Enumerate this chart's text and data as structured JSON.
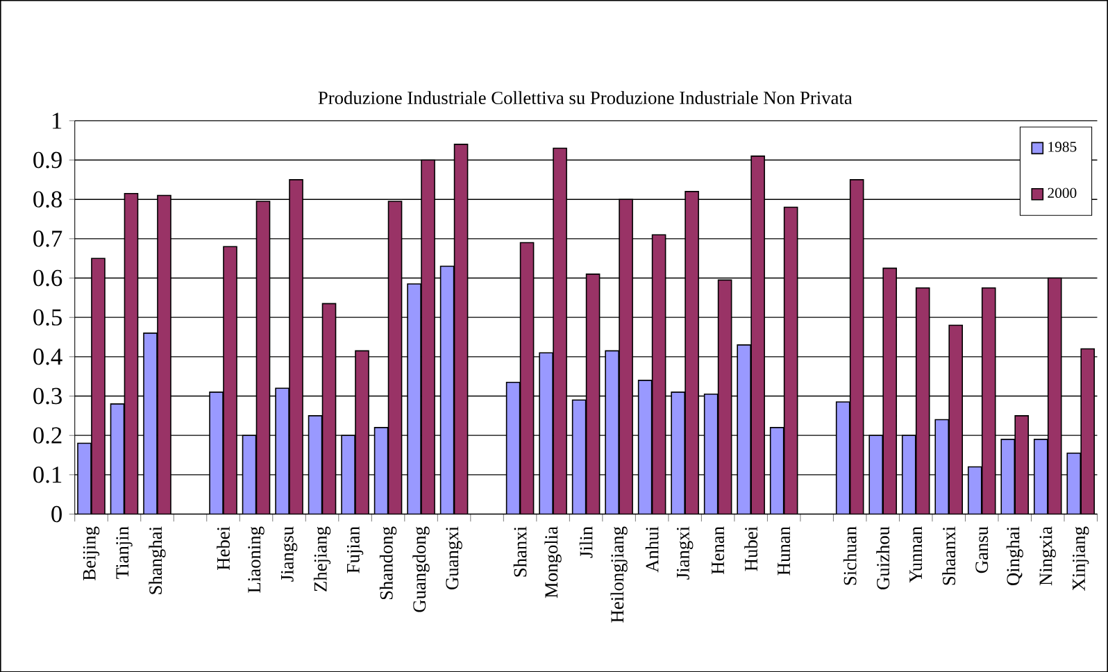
{
  "chart_data": {
    "type": "bar",
    "title": "Produzione Industriale Collettiva su Produzione Industriale Non Privata",
    "categories": [
      "Beijing",
      "Tianjin",
      "Shanghai",
      null,
      "Hebei",
      "Liaoning",
      "Jiangsu",
      "Zhejiang",
      "Fujian",
      "Shandong",
      "Guangdong",
      "Guangxi",
      null,
      "Shanxi",
      "Mongolia",
      "Jilin",
      "Heilongjiang",
      "Anhui",
      "Jiangxi",
      "Henan",
      "Hubei",
      "Hunan",
      null,
      "Sichuan",
      "Guizhou",
      "Yunnan",
      "Shaanxi",
      "Gansu",
      "Qinghai",
      "Ningxia",
      "Xinjiang"
    ],
    "series": [
      {
        "name": "1985",
        "color": "#9999ff",
        "values": [
          0.18,
          0.28,
          0.46,
          null,
          0.31,
          0.2,
          0.32,
          0.25,
          0.2,
          0.22,
          0.585,
          0.63,
          null,
          0.335,
          0.41,
          0.29,
          0.415,
          0.34,
          0.31,
          0.305,
          0.43,
          0.22,
          null,
          0.285,
          0.2,
          0.2,
          0.24,
          0.12,
          0.19,
          0.19,
          0.155
        ]
      },
      {
        "name": "2000",
        "color": "#993366",
        "values": [
          0.65,
          0.815,
          0.81,
          null,
          0.68,
          0.795,
          0.85,
          0.535,
          0.415,
          0.795,
          0.9,
          0.94,
          null,
          0.69,
          0.93,
          0.61,
          0.8,
          0.71,
          0.82,
          0.595,
          0.91,
          0.78,
          null,
          0.85,
          0.625,
          0.575,
          0.48,
          0.575,
          0.25,
          0.6,
          0.42
        ]
      }
    ],
    "ylim": [
      0,
      1
    ],
    "yticks": [
      0,
      0.1,
      0.2,
      0.3,
      0.4,
      0.5,
      0.6,
      0.7,
      0.8,
      0.9,
      1
    ],
    "grid": "y",
    "legend": "top right"
  }
}
